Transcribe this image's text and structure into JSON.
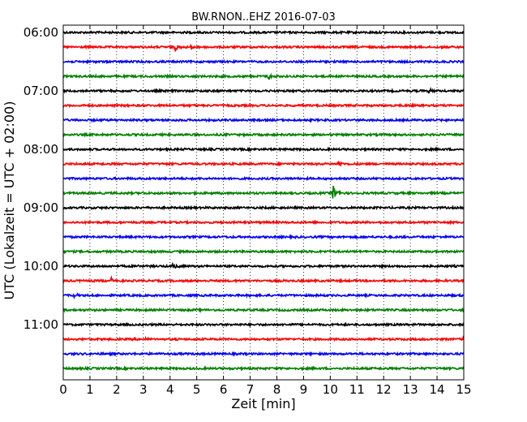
{
  "chart_data": {
    "type": "line",
    "title": "BW.RNON..EHZ 2016-07-03",
    "xlabel": "Zeit  [min]",
    "ylabel": "UTC (Lokalzeit = UTC + 02:00)",
    "xlim": [
      0,
      15
    ],
    "x_ticks": [
      0,
      1,
      2,
      3,
      4,
      5,
      6,
      7,
      8,
      9,
      10,
      11,
      12,
      13,
      14,
      15
    ],
    "x_tick_labels": [
      "0",
      "1",
      "2",
      "3",
      "4",
      "5",
      "6",
      "7",
      "8",
      "9",
      "10",
      "11",
      "12",
      "13",
      "14",
      "15"
    ],
    "grid": "vertical-dotted",
    "series_colors": [
      "#000000",
      "#ff0000",
      "#0000ff",
      "#008000"
    ],
    "y_tick_labels": [
      {
        "label": "06:00",
        "row": 0
      },
      {
        "label": "07:00",
        "row": 4
      },
      {
        "label": "08:00",
        "row": 8
      },
      {
        "label": "09:00",
        "row": 12
      },
      {
        "label": "10:00",
        "row": 16
      },
      {
        "label": "11:00",
        "row": 20
      }
    ],
    "traces": [
      {
        "start": "06:00",
        "color": "#000000",
        "events": []
      },
      {
        "start": "06:15",
        "color": "#ff0000",
        "events": [
          {
            "t": 4.2,
            "amp": 0.55
          },
          {
            "t": 4.8,
            "amp": 0.45
          }
        ]
      },
      {
        "start": "06:30",
        "color": "#0000ff",
        "events": []
      },
      {
        "start": "06:45",
        "color": "#008000",
        "events": [
          {
            "t": 7.7,
            "amp": 0.5
          }
        ]
      },
      {
        "start": "07:00",
        "color": "#000000",
        "events": [
          {
            "t": 13.7,
            "amp": 0.4
          }
        ]
      },
      {
        "start": "07:15",
        "color": "#ff0000",
        "events": []
      },
      {
        "start": "07:30",
        "color": "#0000ff",
        "events": []
      },
      {
        "start": "07:45",
        "color": "#008000",
        "events": []
      },
      {
        "start": "08:00",
        "color": "#000000",
        "events": []
      },
      {
        "start": "08:15",
        "color": "#ff0000",
        "events": [
          {
            "t": 10.3,
            "amp": 0.45
          }
        ]
      },
      {
        "start": "08:30",
        "color": "#0000ff",
        "events": []
      },
      {
        "start": "08:45",
        "color": "#008000",
        "events": [
          {
            "t": 10.1,
            "amp": 1.3
          }
        ]
      },
      {
        "start": "09:00",
        "color": "#000000",
        "events": []
      },
      {
        "start": "09:15",
        "color": "#ff0000",
        "events": []
      },
      {
        "start": "09:30",
        "color": "#0000ff",
        "events": []
      },
      {
        "start": "09:45",
        "color": "#008000",
        "events": []
      },
      {
        "start": "10:00",
        "color": "#000000",
        "events": [
          {
            "t": 4.1,
            "amp": 0.5
          },
          {
            "t": 2.8,
            "amp": 0.2
          }
        ]
      },
      {
        "start": "10:15",
        "color": "#ff0000",
        "events": [
          {
            "t": 1.8,
            "amp": 0.45
          }
        ]
      },
      {
        "start": "10:30",
        "color": "#0000ff",
        "events": [
          {
            "t": 0.4,
            "amp": 0.35
          }
        ]
      },
      {
        "start": "10:45",
        "color": "#008000",
        "events": []
      },
      {
        "start": "11:00",
        "color": "#000000",
        "events": []
      },
      {
        "start": "11:15",
        "color": "#ff0000",
        "events": [
          {
            "t": 3.0,
            "amp": 0.3
          },
          {
            "t": 15.0,
            "amp": 0.4
          }
        ]
      },
      {
        "start": "11:30",
        "color": "#0000ff",
        "events": []
      },
      {
        "start": "11:45",
        "color": "#008000",
        "events": []
      }
    ]
  }
}
